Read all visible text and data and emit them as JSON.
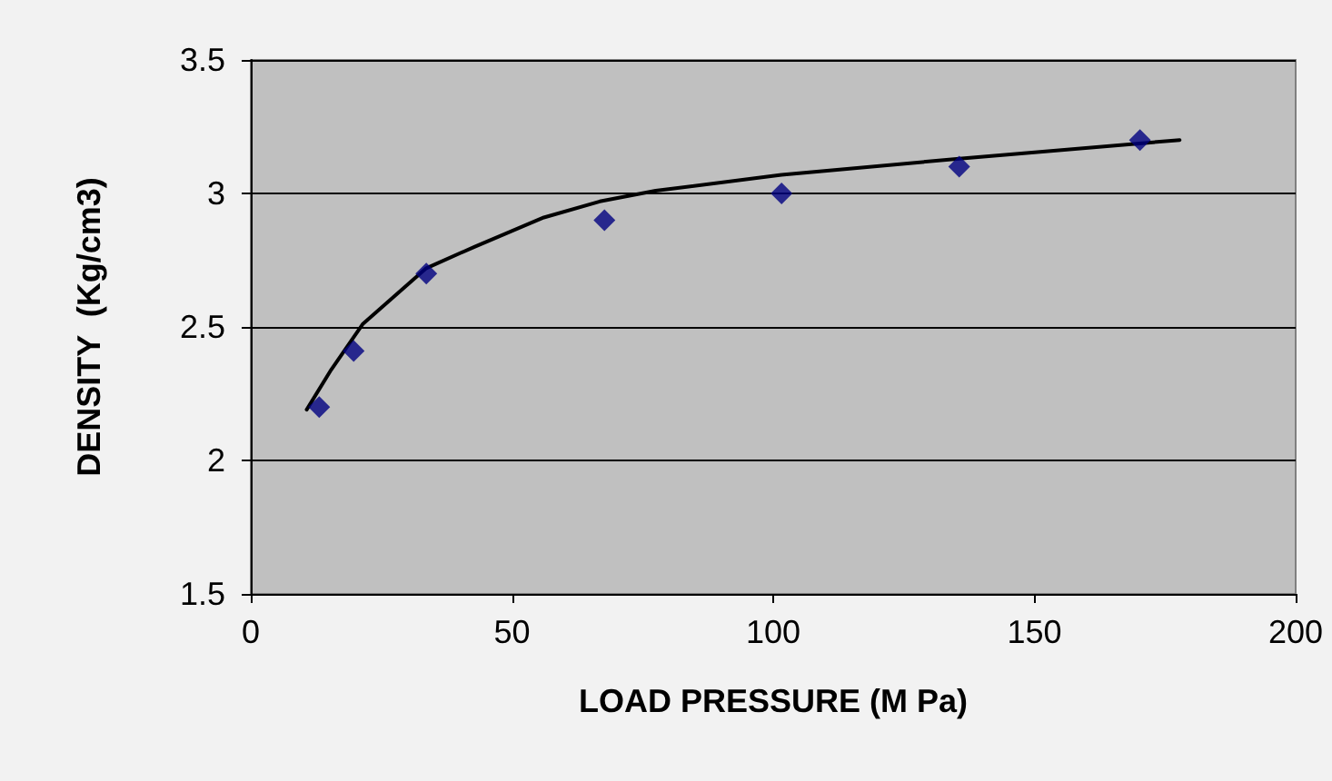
{
  "chart_data": {
    "type": "scatter",
    "xlabel": "LOAD PRESSURE (M Pa)",
    "ylabel": "DENSITY  (Kg/cm3)",
    "xlim": [
      0,
      200
    ],
    "xticks": [
      0,
      50,
      100,
      150,
      200
    ],
    "ylim": [
      1.5,
      3.5
    ],
    "yticks": [
      1.5,
      2,
      2.5,
      3,
      3.5
    ],
    "grid": "y",
    "marker": "diamond",
    "series": [
      {
        "color": "#000080",
        "x": [
          13.1,
          19.7,
          33.6,
          67.7,
          101.6,
          135.6,
          170.2
        ],
        "values": [
          2.2,
          2.41,
          2.7,
          2.9,
          3.0,
          3.1,
          3.2
        ]
      },
      {
        "type": "line",
        "color": "#000000",
        "marker": "none",
        "x": [
          10.7,
          15.4,
          21.4,
          33.6,
          42.8,
          56.1,
          66.8,
          77.5,
          101.6,
          135.6,
          177.8
        ],
        "values": [
          2.19,
          2.34,
          2.51,
          2.72,
          2.8,
          2.91,
          2.97,
          3.01,
          3.07,
          3.13,
          3.2
        ]
      }
    ]
  }
}
